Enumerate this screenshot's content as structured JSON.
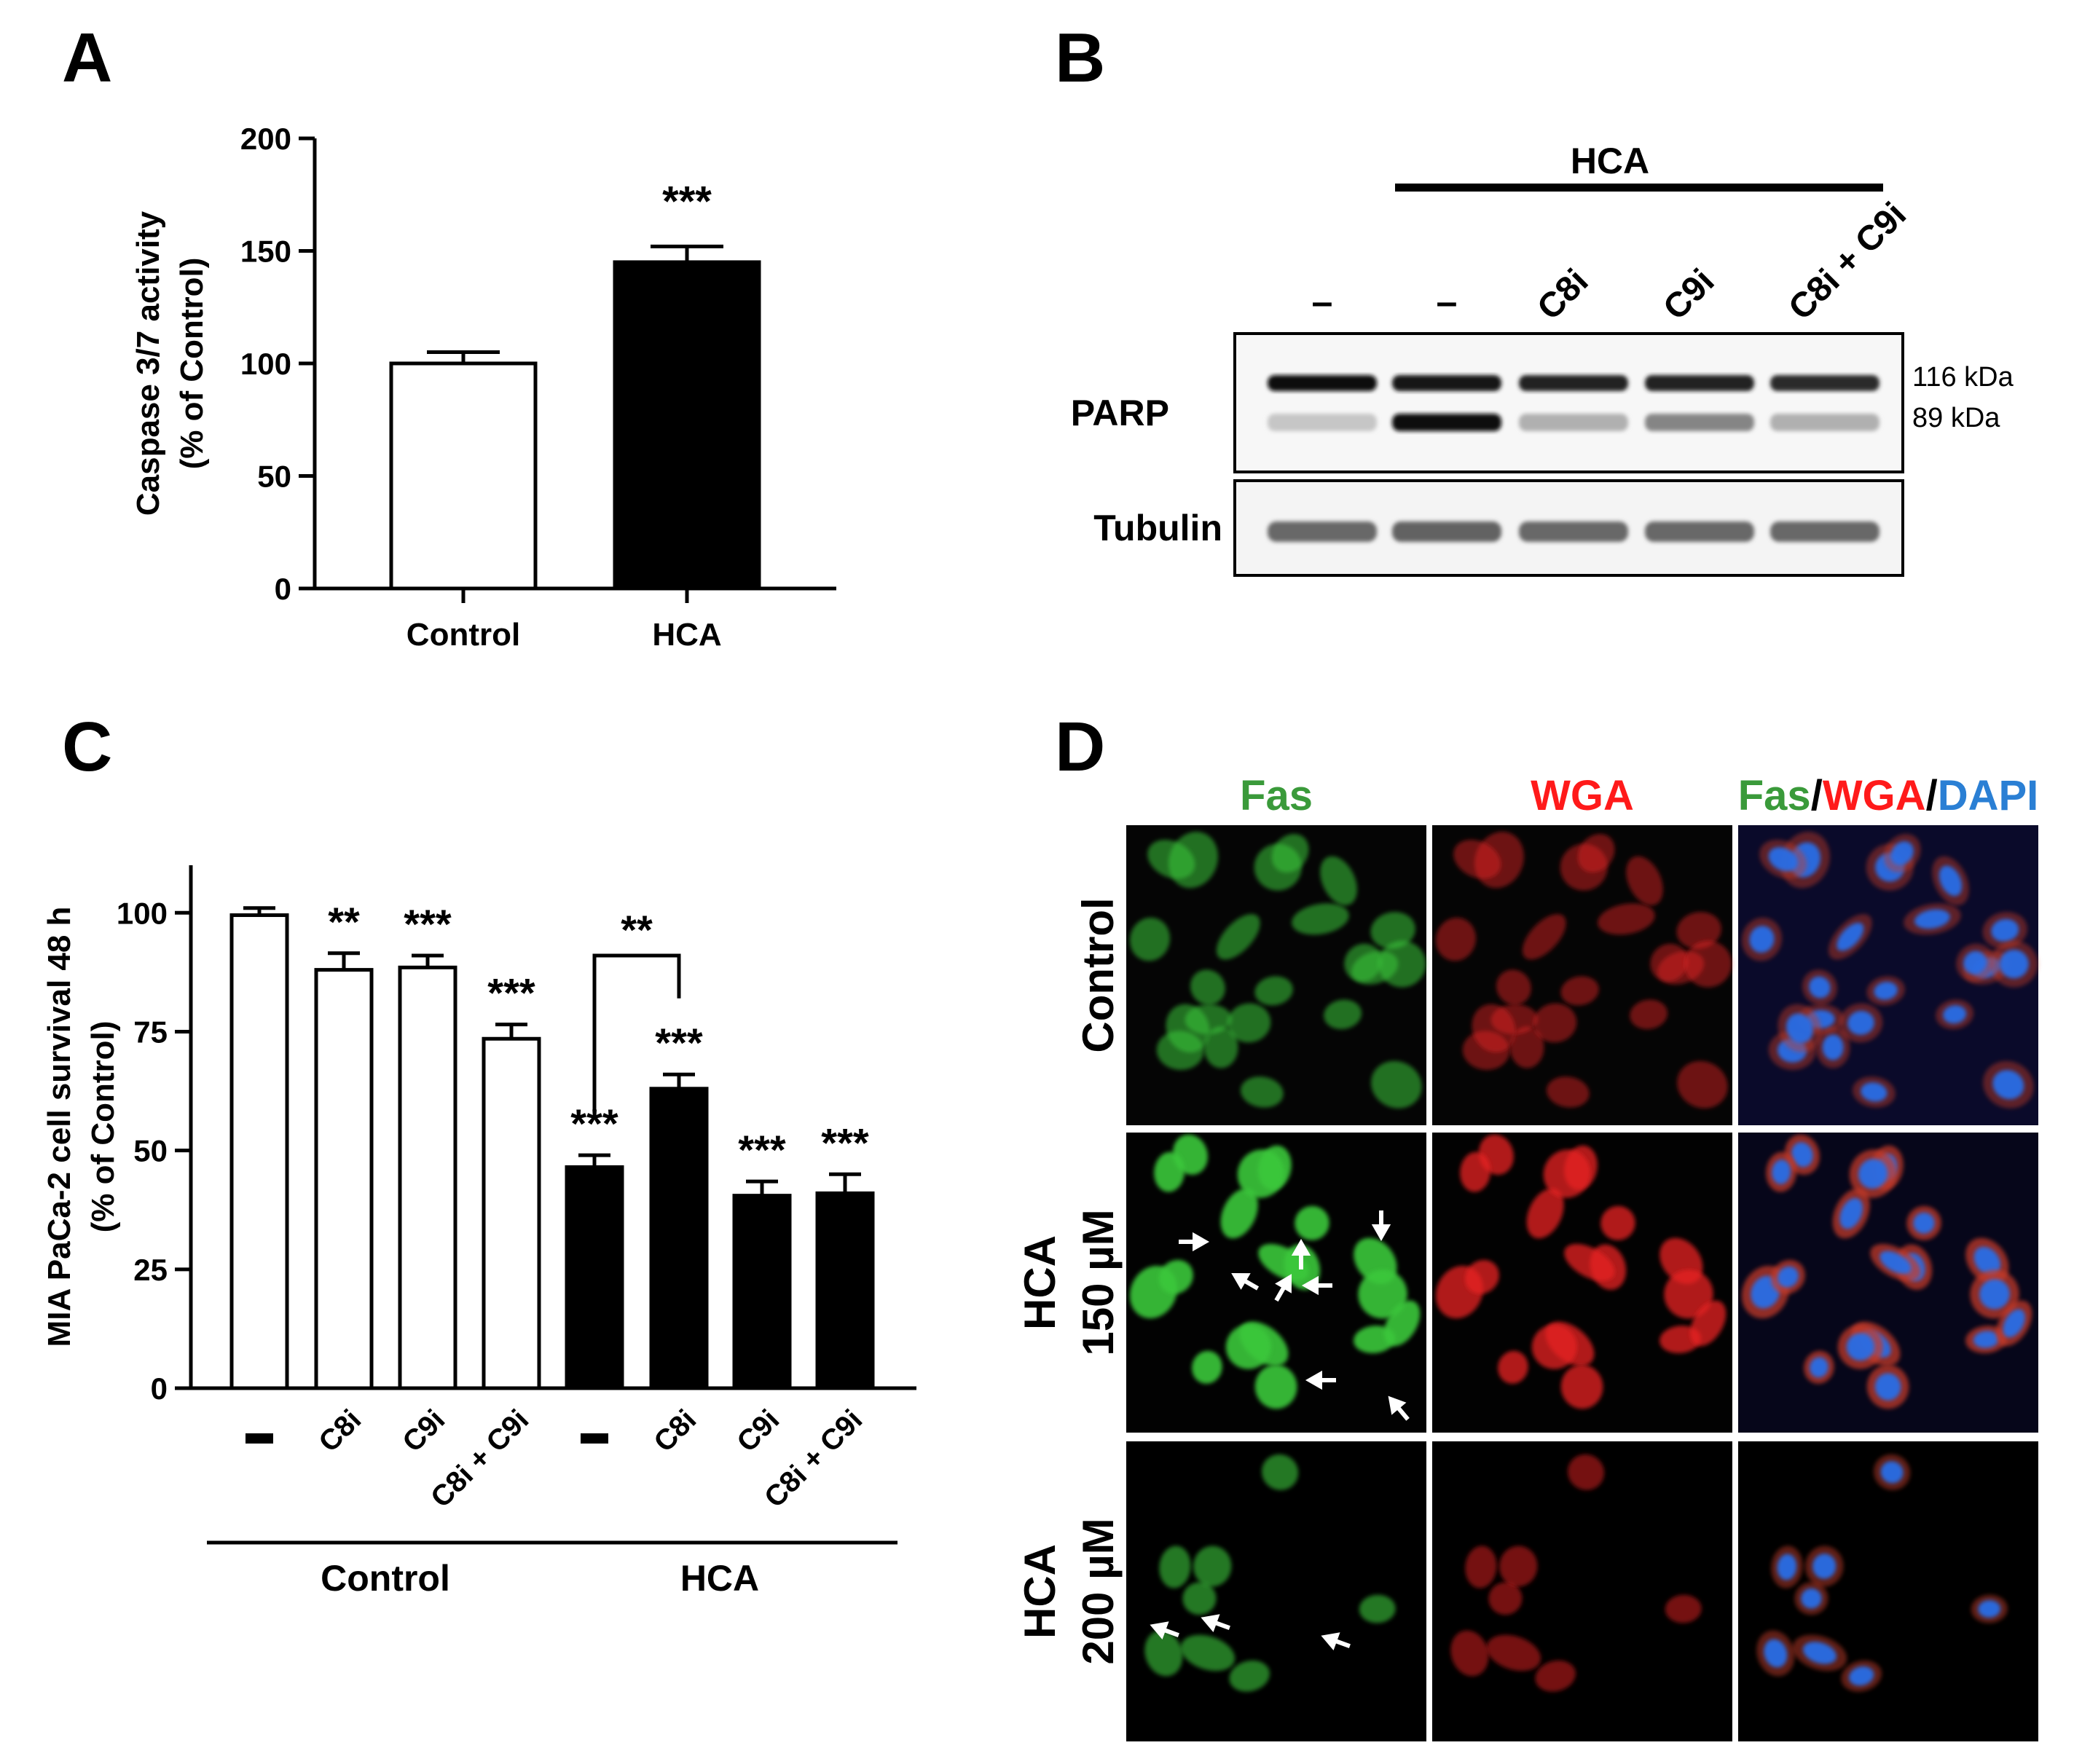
{
  "panels": {
    "A": {
      "letter": "A"
    },
    "B": {
      "letter": "B"
    },
    "C": {
      "letter": "C"
    },
    "D": {
      "letter": "D"
    }
  },
  "chart_data": [
    {
      "panel": "A",
      "type": "bar",
      "ylabel_line1": "Caspase 3/7 activity",
      "ylabel_line2": "(% of Control)",
      "ylim": [
        0,
        200
      ],
      "yticks": [
        0,
        50,
        100,
        150,
        200
      ],
      "categories": [
        "Control",
        "HCA"
      ],
      "values": [
        100,
        145
      ],
      "errors": [
        5,
        7
      ],
      "fills": [
        "#ffffff",
        "#000000"
      ],
      "annotations": [
        "",
        "***"
      ]
    },
    {
      "panel": "C",
      "type": "bar",
      "ylabel_line1": "MIA PaCa-2 cell survival 48 h",
      "ylabel_line2": "(% of Control)",
      "ylim": [
        0,
        110
      ],
      "yticks": [
        0,
        25,
        50,
        75,
        100
      ],
      "categories": [
        "–",
        "C8i",
        "C9i",
        "C8i + C9i",
        "–",
        "C8i",
        "C9i",
        "C8i + C9i"
      ],
      "values": [
        99.5,
        88,
        88.5,
        73.5,
        46.5,
        63,
        40.5,
        41
      ],
      "errors": [
        1.5,
        3.5,
        2.5,
        3,
        2.5,
        3,
        3,
        4
      ],
      "fills": [
        "#ffffff",
        "#ffffff",
        "#ffffff",
        "#ffffff",
        "#000000",
        "#000000",
        "#000000",
        "#000000"
      ],
      "annotations": [
        "",
        "**",
        "***",
        "***",
        "***",
        "***",
        "***",
        "***"
      ],
      "groups": [
        {
          "label": "Control",
          "from": 0,
          "to": 3
        },
        {
          "label": "HCA",
          "from": 4,
          "to": 7
        }
      ],
      "bracket": {
        "from": 4,
        "to": 5,
        "label": "**"
      }
    }
  ],
  "blot": {
    "hca_label": "HCA",
    "lanes": [
      "–",
      "–",
      "C8i",
      "C9i",
      "C8i + C9i"
    ],
    "rows": [
      {
        "label": "PARP",
        "markers": [
          "116 kDa",
          "89 kDa"
        ],
        "upper_band": [
          1,
          0.95,
          0.9,
          0.9,
          0.85
        ],
        "lower_band": [
          0.15,
          1,
          0.25,
          0.45,
          0.25
        ]
      },
      {
        "label": "Tubulin",
        "band": [
          0.8,
          0.85,
          0.8,
          0.8,
          0.8
        ]
      }
    ]
  },
  "micro": {
    "columns": [
      [
        {
          "text": "Fas",
          "color": "#3a9a3a"
        }
      ],
      [
        {
          "text": "WGA",
          "color": "#ff1a1a"
        }
      ],
      [
        {
          "text": "Fas",
          "color": "#3a9a3a"
        },
        {
          "text": "/",
          "color": "#000000"
        },
        {
          "text": "WGA",
          "color": "#ff1a1a"
        },
        {
          "text": "/",
          "color": "#000000"
        },
        {
          "text": "DAPI",
          "color": "#2a7fd4"
        }
      ]
    ],
    "rows": [
      {
        "line1": "Control",
        "line2": ""
      },
      {
        "line1": "HCA",
        "line2": "150 µM"
      },
      {
        "line1": "HCA",
        "line2": "200 µM"
      }
    ]
  }
}
